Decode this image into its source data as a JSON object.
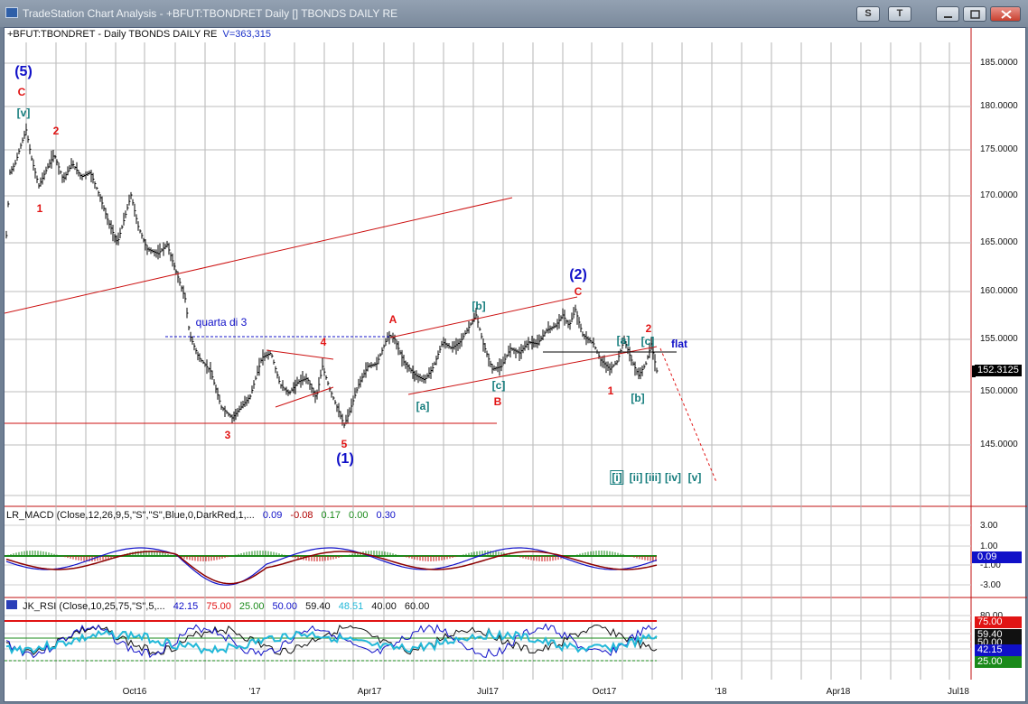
{
  "window": {
    "title": "TradeStation Chart Analysis - +BFUT:TBONDRET Daily [] TBONDS DAILY RE",
    "buttons": [
      "S",
      "T"
    ]
  },
  "chart": {
    "symbol_line": "+BFUT:TBONDRET - Daily  TBONDS DAILY RE",
    "volume": "V=363,315",
    "price_axis": [
      "185.0000",
      "180.0000",
      "175.0000",
      "170.0000",
      "165.0000",
      "160.0000",
      "155.0000",
      "150.0000",
      "145.0000"
    ],
    "last_price": "152.3125",
    "x_labels": [
      "Oct16",
      "'17",
      "Apr17",
      "Jul17",
      "Oct17",
      "'18",
      "Apr18",
      "Jul18"
    ],
    "colors": {
      "bars": "#000000",
      "channel": "#cc1111",
      "label_red": "#e11414",
      "label_blue": "#1010c8",
      "label_teal": "#147c7c"
    },
    "wave_labels": {
      "w5_paren": "(5)",
      "C_top": "C",
      "v_top": "[v]",
      "two_top": "2",
      "one_top": "1",
      "three": "3",
      "four": "4",
      "five": "5",
      "one_paren": "(1)",
      "A": "A",
      "b_bracket": "[b]",
      "c_bracket": "[c]",
      "a_bracket": "[a]",
      "B": "B",
      "two_paren": "(2)",
      "C_mid": "C",
      "a_right": "[a]",
      "c_right": "[c]",
      "two_right": "2",
      "flat": "flat",
      "one_right": "1",
      "b_right": "[b]",
      "i": "[i]",
      "ii": "[ii]",
      "iii": "[iii]",
      "iv": "[iv]",
      "v": "[v]"
    },
    "quarta_text": "quarta di 3"
  },
  "macd": {
    "legend": [
      "LR_MACD (Close,12,26,9,5,\"S\",\"S\",Blue,0,DarkRed,1,...",
      "0.09",
      "-0.08",
      "0.17",
      "0.00",
      "0.30"
    ],
    "axis": [
      "3.00",
      "1.00",
      "-1.00",
      "-3.00"
    ],
    "tag": "0.09"
  },
  "rsi": {
    "legend": [
      "JK_RSI (Close,10,25,75,\"S\",5,...",
      "42.15",
      "75.00",
      "25.00",
      "50.00",
      "59.40",
      "48.51",
      "40.00",
      "60.00"
    ],
    "axis": [
      "80.00",
      "75.00",
      "59.40",
      "50.00",
      "42.15",
      "25.00"
    ],
    "tags": [
      "75.00",
      "59.40",
      "50.00",
      "42.15",
      "25.00"
    ]
  }
}
